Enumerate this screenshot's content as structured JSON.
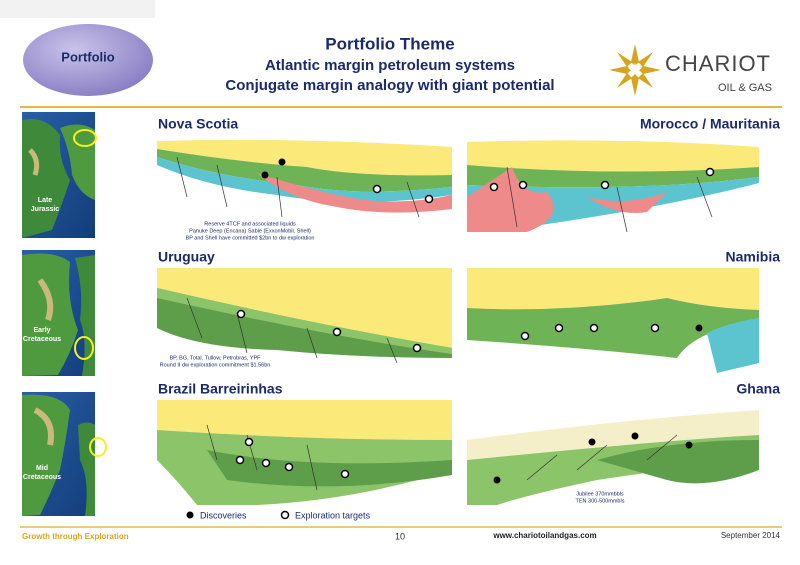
{
  "header": {
    "badge": "Portfolio",
    "title": "Portfolio Theme",
    "subtitle_1": "Atlantic margin petroleum systems",
    "subtitle_2": "Conjugate margin analogy with giant potential",
    "logo_name": "CHARIOT",
    "logo_sub": "OIL & GAS"
  },
  "maps": [
    {
      "label": [
        "Late",
        "Jurassic"
      ]
    },
    {
      "label": [
        "Early",
        "Cretaceous"
      ]
    },
    {
      "label": [
        "Mid",
        "Cretaceous"
      ]
    }
  ],
  "panels": [
    {
      "title": "Nova Scotia",
      "notes": [
        "Reserve 4TCF and associated liquids",
        "Panuke Deep (Encana) Sable (ExxonMobil, Shell)",
        "BP and Shell have committed $2bn to dw exploration"
      ]
    },
    {
      "title": "Morocco / Mauritania",
      "notes": []
    },
    {
      "title": "Uruguay",
      "notes": [
        "BP, BG, Total, Tullow, Petrobras, YPF",
        "Round II dw exploration commitment $1.56bn"
      ]
    },
    {
      "title": "Namibia",
      "notes": []
    },
    {
      "title": "Brazil Barreirinhas",
      "notes": []
    },
    {
      "title": "Ghana",
      "notes": [
        "Jubilee 370mmbbls",
        "TEN  300-500mmbls"
      ]
    }
  ],
  "legend": {
    "discoveries": "Discoveries",
    "targets": "Exploration targets"
  },
  "footer": {
    "tagline": "Growth through Exploration",
    "page": "10",
    "url": "www.chariotoilandgas.com",
    "date": "September 2014"
  }
}
